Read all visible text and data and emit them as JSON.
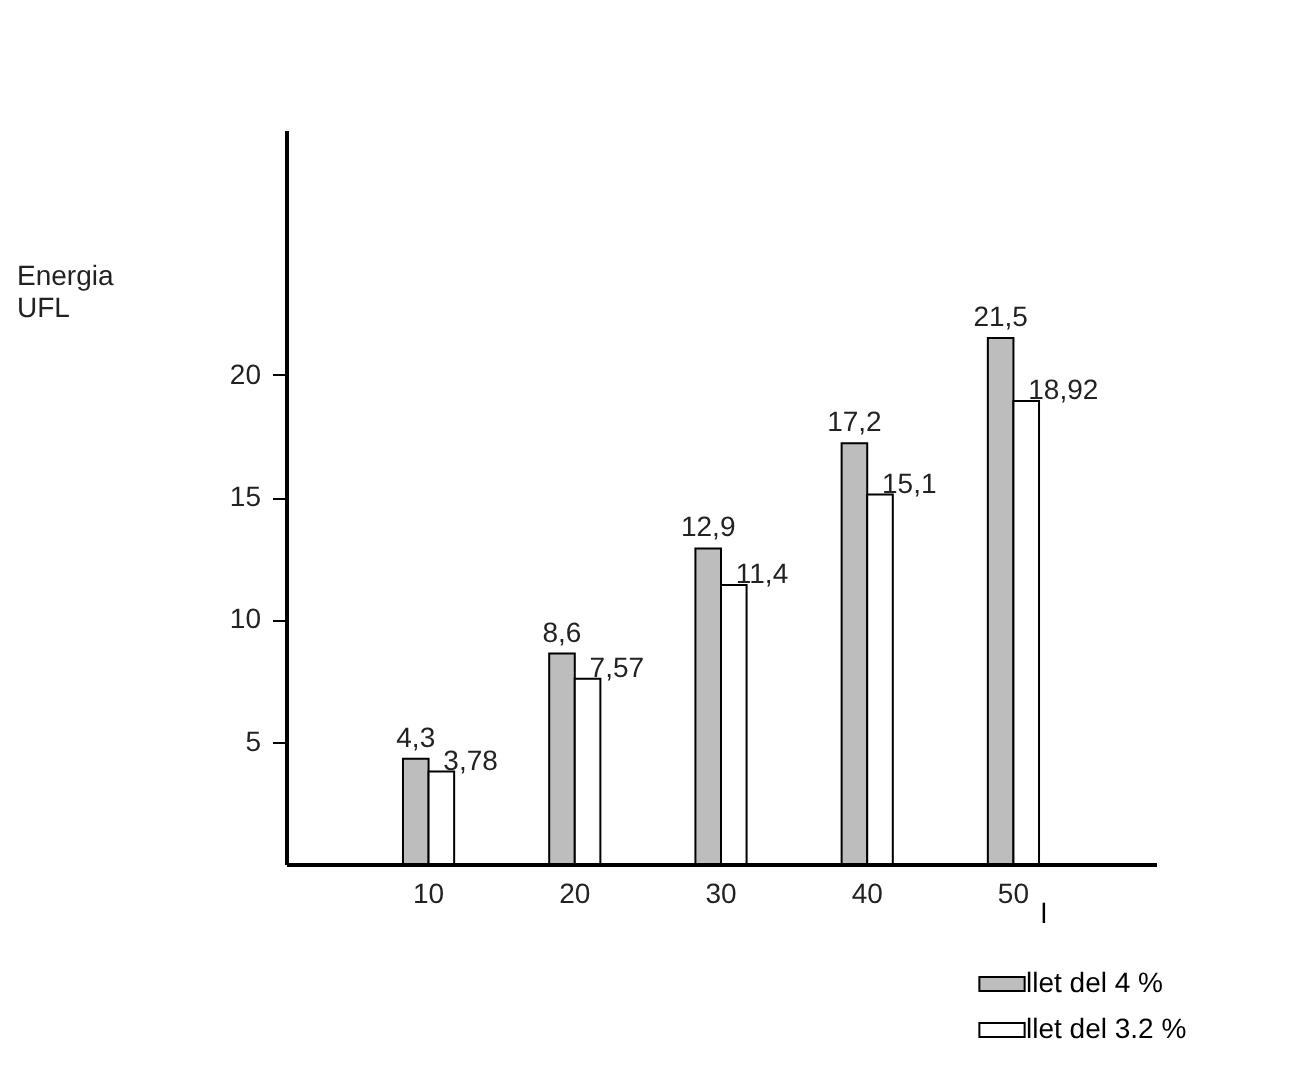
{
  "chart_data": {
    "type": "bar",
    "ylabel": "Energia\nUFL",
    "xlabel": "l",
    "categories": [
      "10",
      "20",
      "30",
      "40",
      "50"
    ],
    "series": [
      {
        "name": "llet del 4 %",
        "color": "#bdbdbd",
        "values": [
          4.3,
          8.6,
          12.9,
          17.2,
          21.5
        ],
        "value_labels": [
          "4,3",
          "8,6",
          "12,9",
          "17,2",
          "21,5"
        ]
      },
      {
        "name": "llet del 3.2 %",
        "color": "#ffffff",
        "values": [
          3.78,
          7.57,
          11.4,
          15.1,
          18.92
        ],
        "value_labels": [
          "3,78",
          "7,57",
          "11,4",
          "15,1",
          "18,92"
        ]
      }
    ],
    "ylim": [
      0,
      30
    ],
    "yticks": [
      5,
      10,
      15,
      20
    ],
    "grid": false,
    "legend": "bottom right"
  }
}
